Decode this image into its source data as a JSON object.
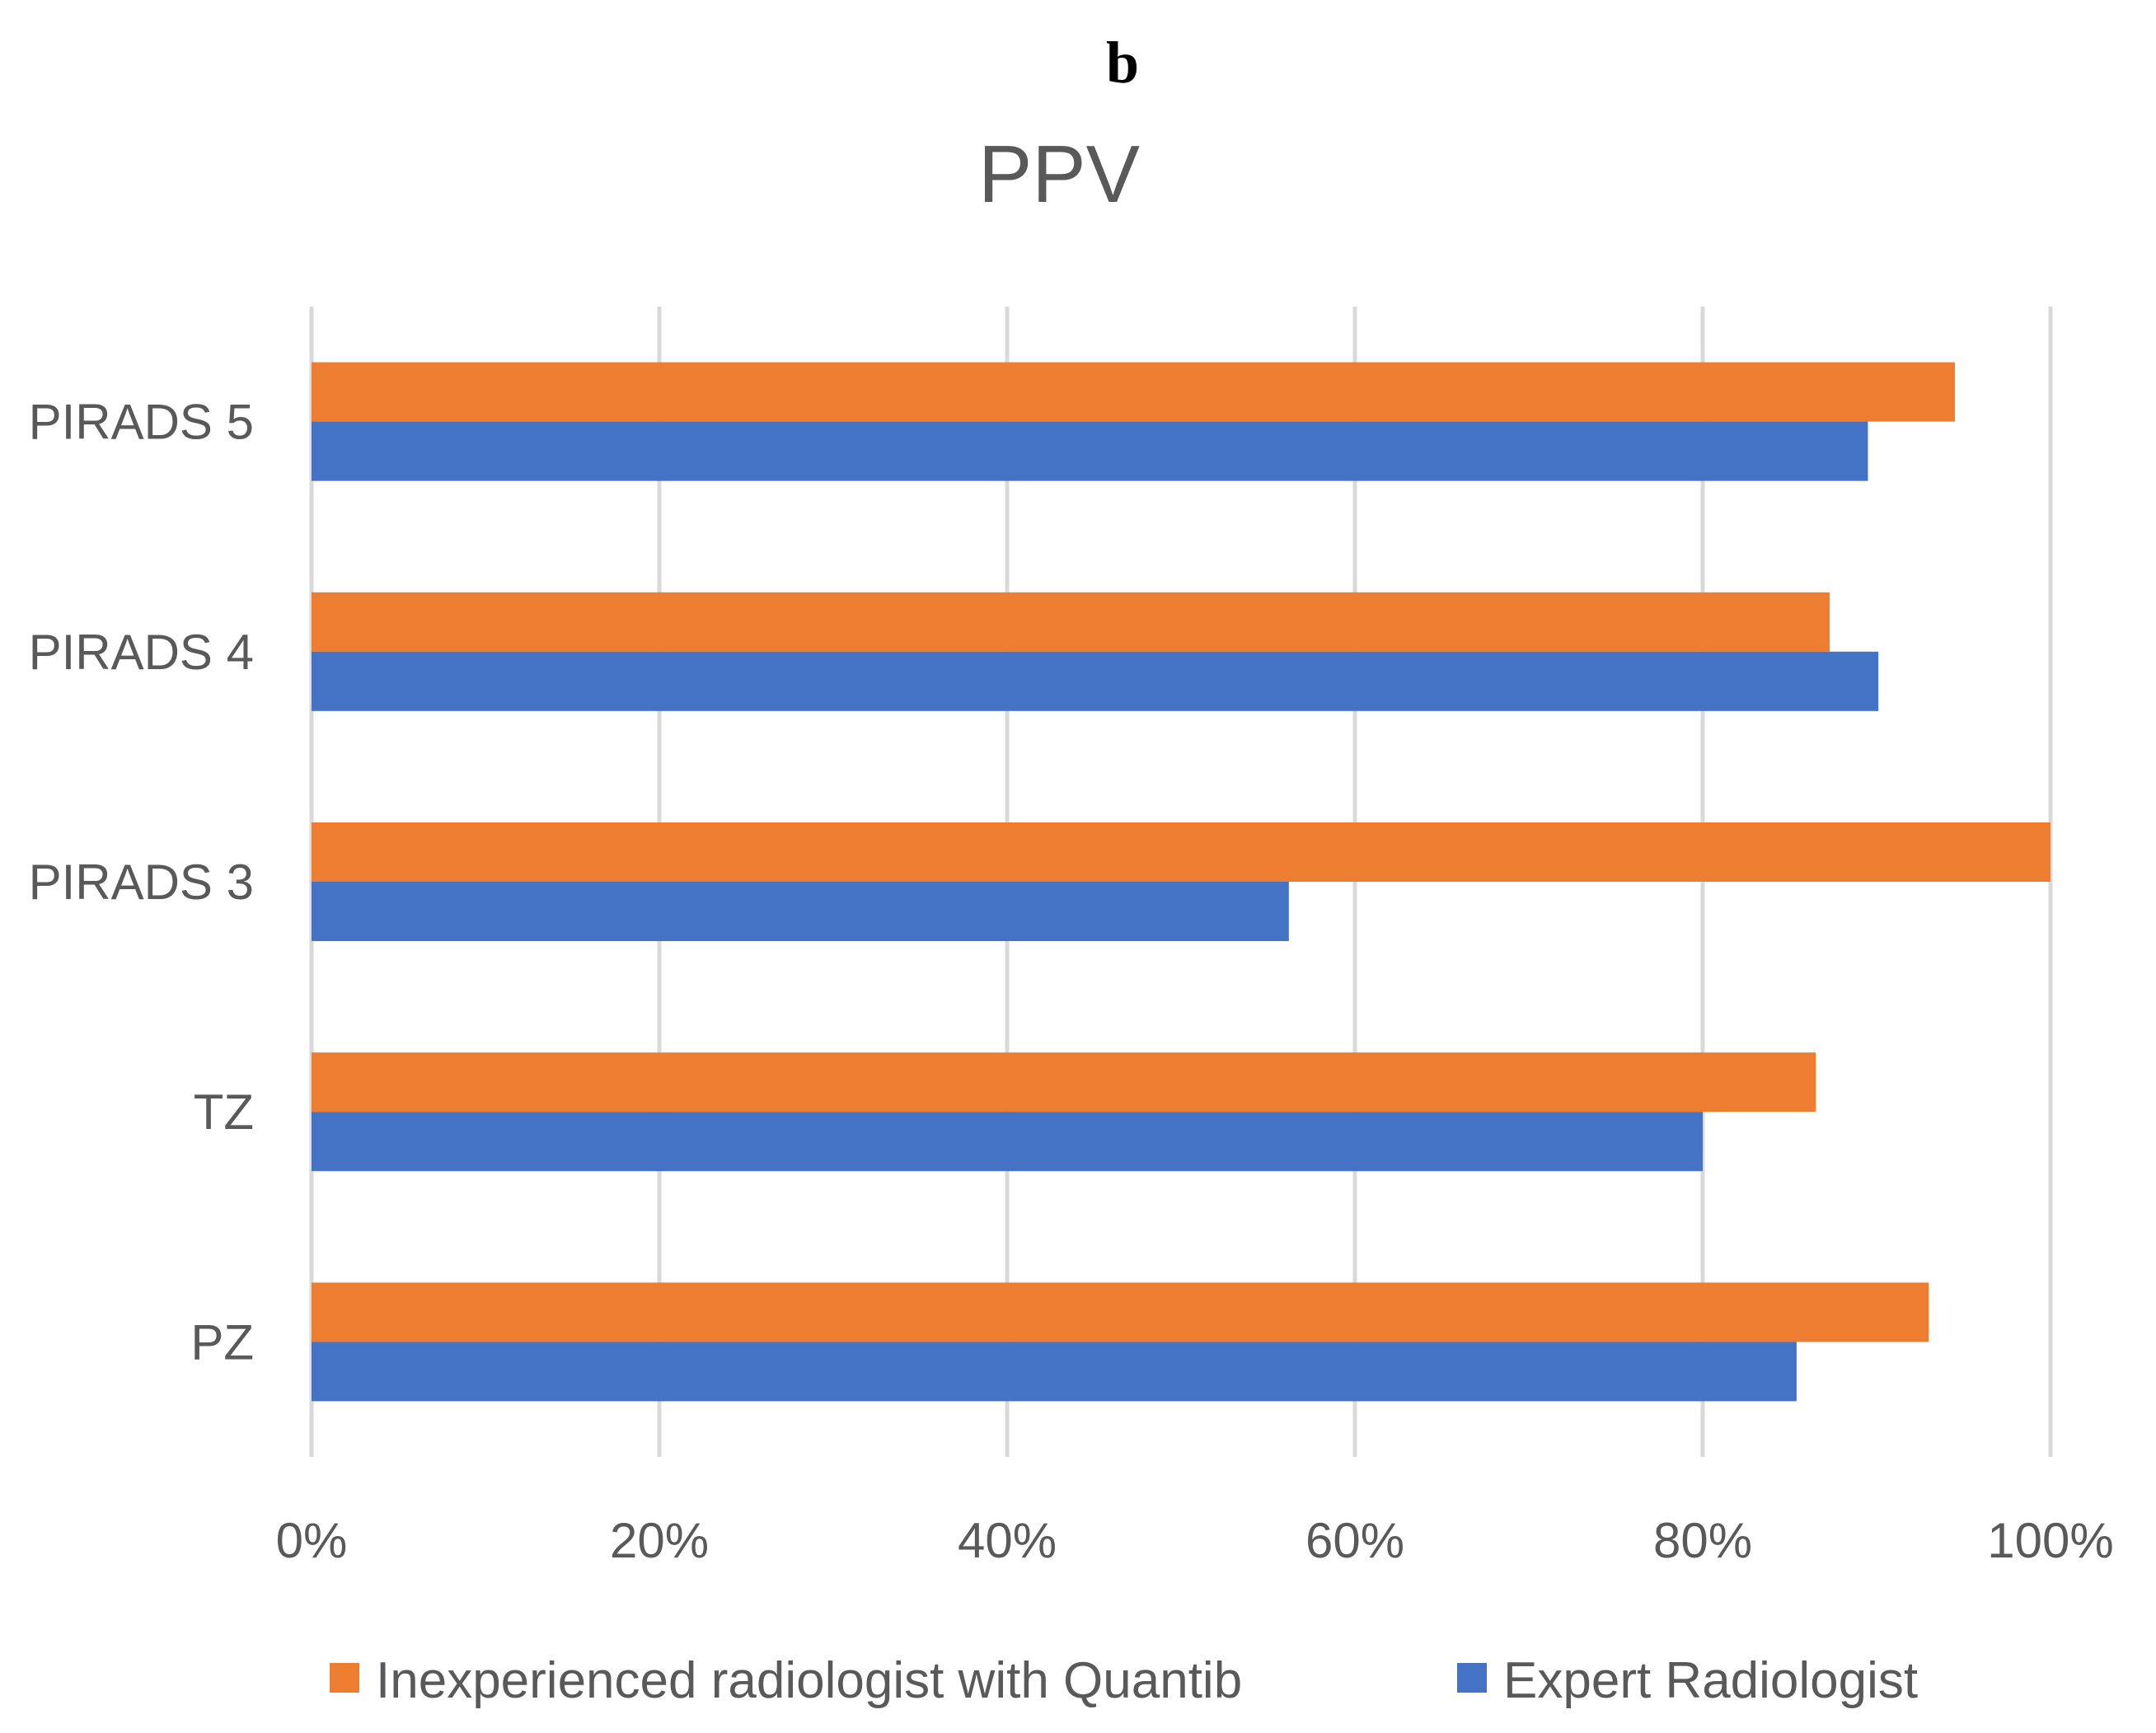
{
  "panel_label": "b",
  "chart_data": {
    "type": "bar",
    "orientation": "horizontal",
    "title": "PPV",
    "categories": [
      "PIRADS 5",
      "PIRADS 4",
      "PIRADS 3",
      "TZ",
      "PZ"
    ],
    "series": [
      {
        "name": "Inexperienced radiologist with Quantib",
        "color": "#ed7d31",
        "values": [
          94.5,
          87.3,
          100,
          86.5,
          93
        ]
      },
      {
        "name": "Expert Radiologist",
        "color": "#4472c4",
        "values": [
          89.5,
          90.1,
          56.2,
          80,
          85.4
        ]
      }
    ],
    "xlim": [
      0,
      100
    ],
    "xticks": [
      0,
      20,
      40,
      60,
      80,
      100
    ],
    "xtick_labels": [
      "0%",
      "20%",
      "40%",
      "60%",
      "80%",
      "100%"
    ],
    "grid": true,
    "legend_position": "bottom"
  }
}
